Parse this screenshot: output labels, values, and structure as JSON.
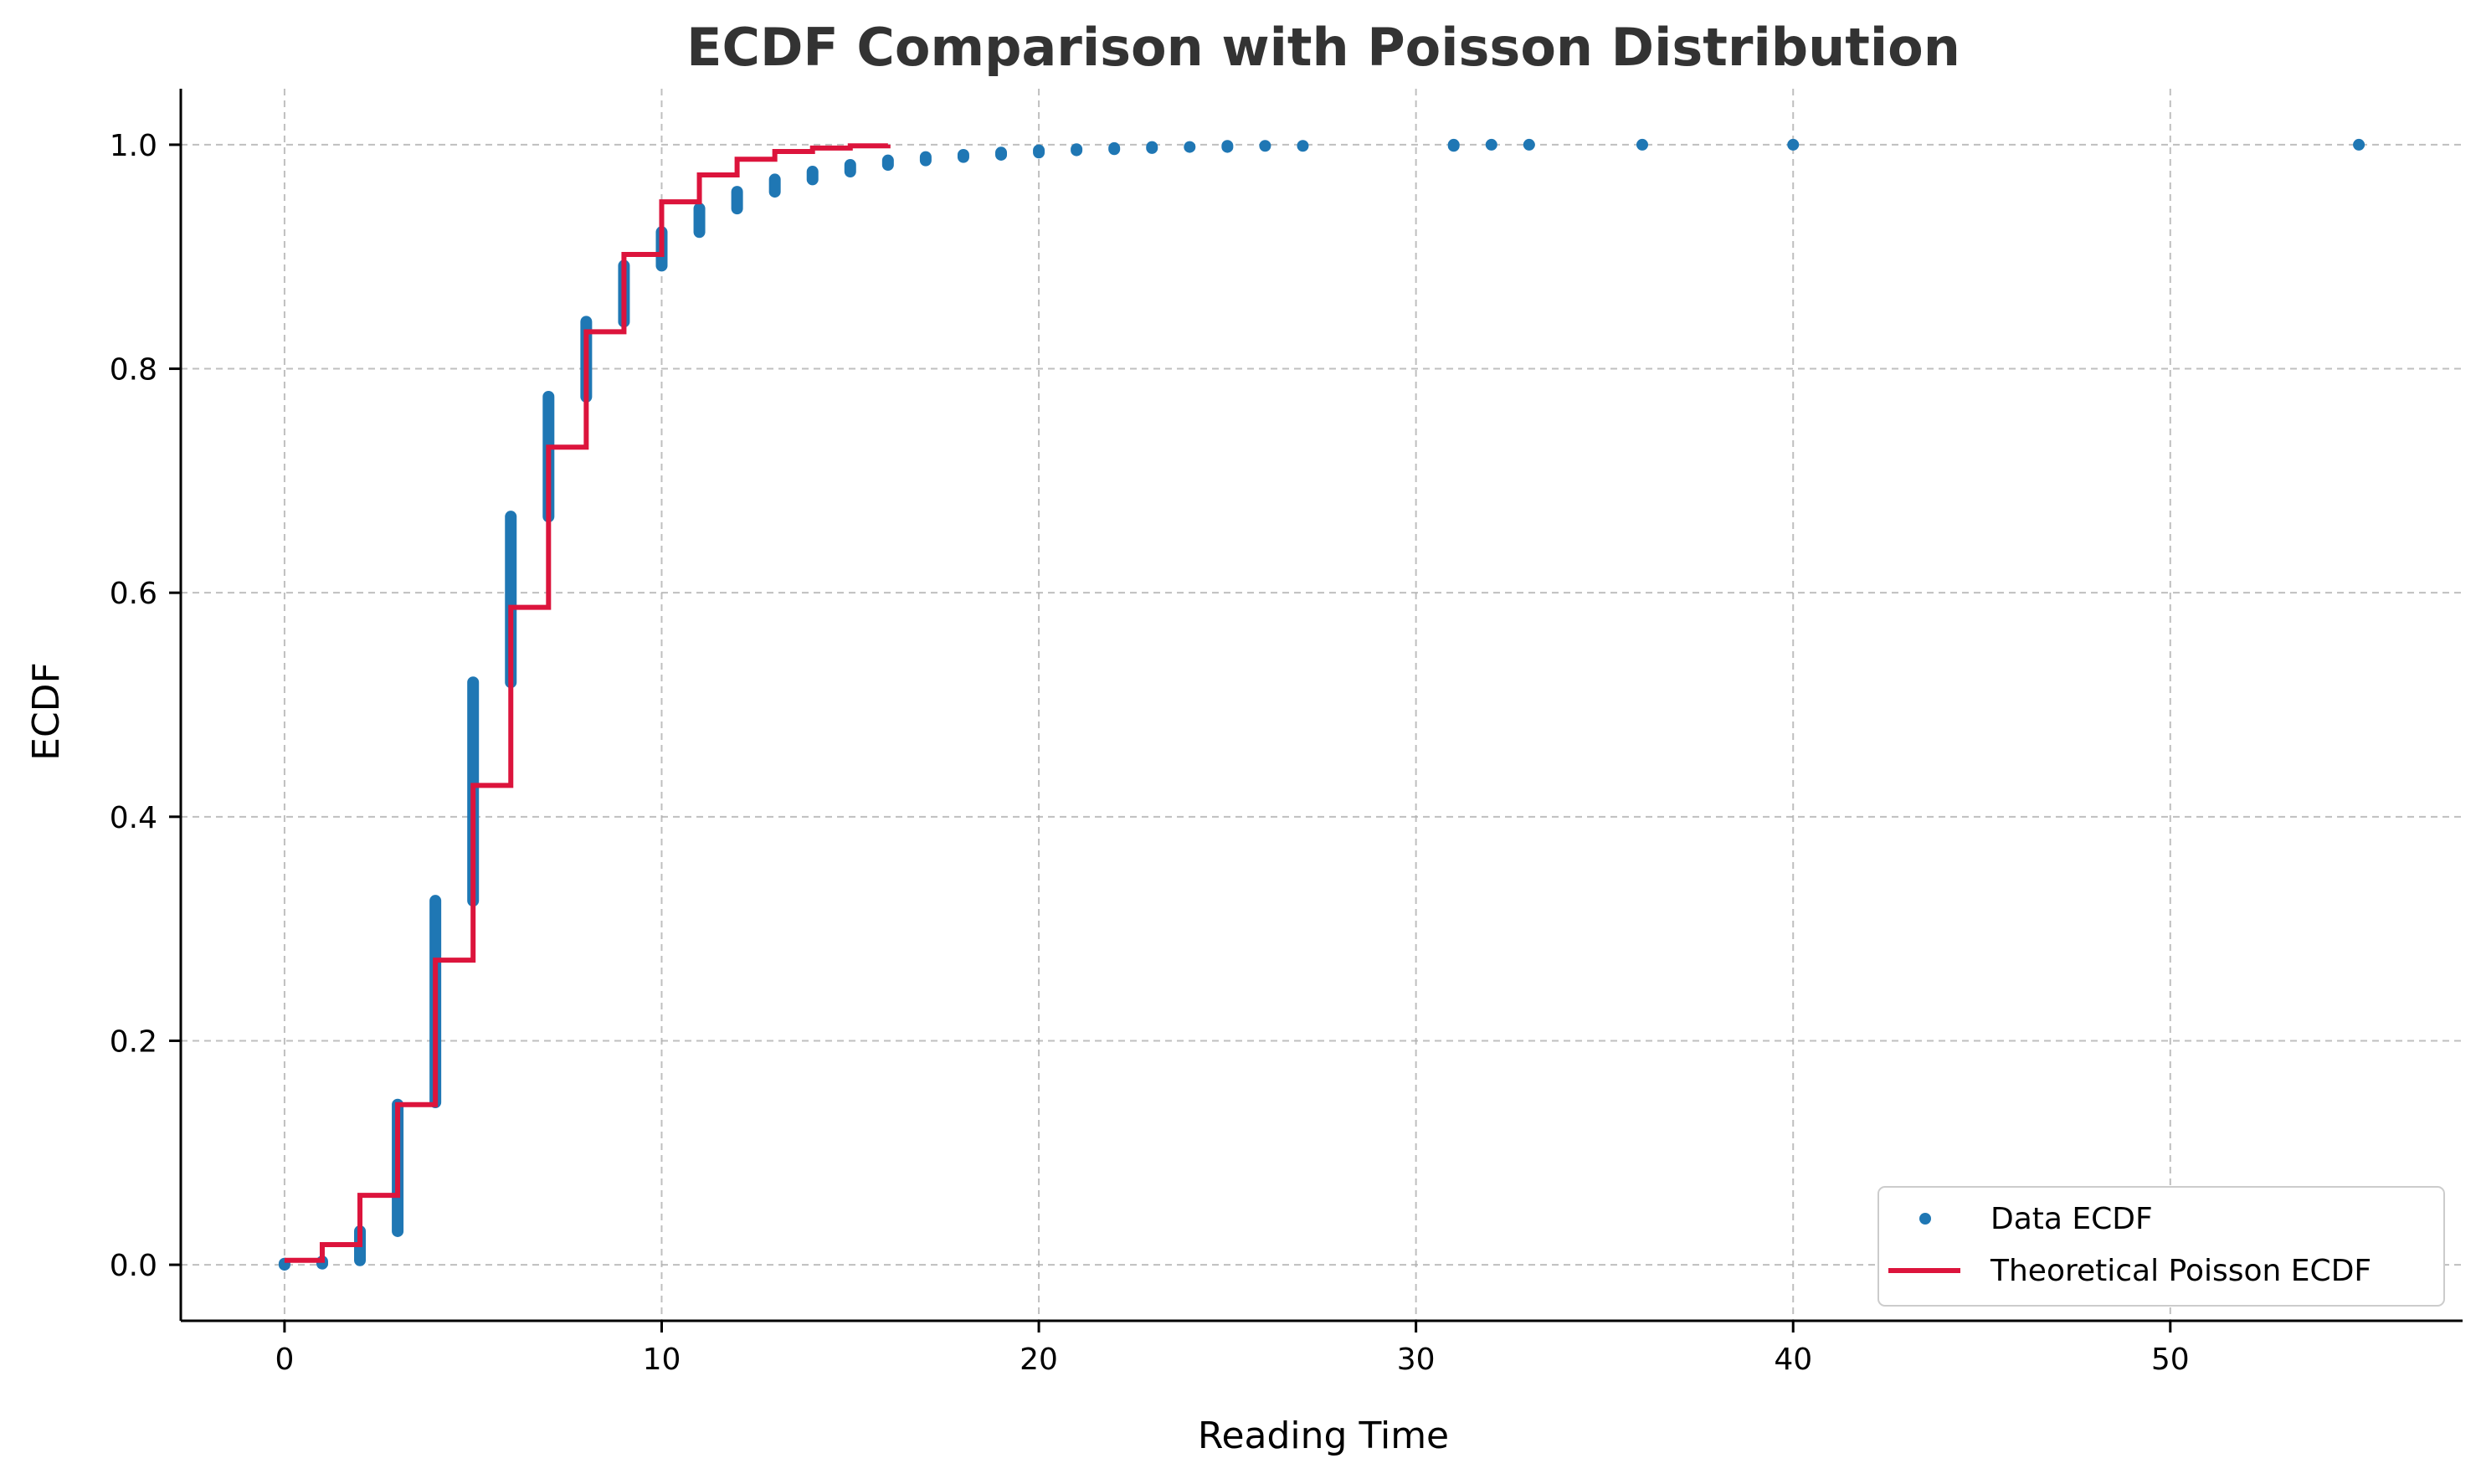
{
  "chart_data": {
    "type": "scatter",
    "title": "ECDF Comparison with Poisson Distribution",
    "xlabel": "Reading Time",
    "ylabel": "ECDF",
    "xlim": [
      -2.75,
      57.75
    ],
    "ylim": [
      -0.05,
      1.05
    ],
    "xticks": [
      0,
      10,
      20,
      30,
      40,
      50
    ],
    "xtick_labels": [
      "0",
      "10",
      "20",
      "30",
      "40",
      "50"
    ],
    "yticks": [
      0.0,
      0.2,
      0.4,
      0.6,
      0.8,
      1.0
    ],
    "ytick_labels": [
      "0.0",
      "0.2",
      "0.4",
      "0.6",
      "0.8",
      "1.0"
    ],
    "grid": true,
    "legend_position": "lower-right",
    "series": [
      {
        "name": "Data ECDF",
        "kind": "points",
        "color": "#1f77b4",
        "points": [
          {
            "x": 0,
            "y_min": 0.0,
            "y_max": 0.001
          },
          {
            "x": 1,
            "y_min": 0.001,
            "y_max": 0.003
          },
          {
            "x": 2,
            "y_min": 0.004,
            "y_max": 0.03
          },
          {
            "x": 3,
            "y_min": 0.03,
            "y_max": 0.143
          },
          {
            "x": 4,
            "y_min": 0.145,
            "y_max": 0.325
          },
          {
            "x": 5,
            "y_min": 0.325,
            "y_max": 0.52
          },
          {
            "x": 6,
            "y_min": 0.52,
            "y_max": 0.668
          },
          {
            "x": 7,
            "y_min": 0.668,
            "y_max": 0.775
          },
          {
            "x": 8,
            "y_min": 0.775,
            "y_max": 0.842
          },
          {
            "x": 9,
            "y_min": 0.842,
            "y_max": 0.892
          },
          {
            "x": 10,
            "y_min": 0.892,
            "y_max": 0.922
          },
          {
            "x": 11,
            "y_min": 0.922,
            "y_max": 0.943
          },
          {
            "x": 12,
            "y_min": 0.943,
            "y_max": 0.958
          },
          {
            "x": 13,
            "y_min": 0.958,
            "y_max": 0.969
          },
          {
            "x": 14,
            "y_min": 0.969,
            "y_max": 0.976
          },
          {
            "x": 15,
            "y_min": 0.976,
            "y_max": 0.982
          },
          {
            "x": 16,
            "y_min": 0.982,
            "y_max": 0.986
          },
          {
            "x": 17,
            "y_min": 0.986,
            "y_max": 0.989
          },
          {
            "x": 18,
            "y_min": 0.989,
            "y_max": 0.991
          },
          {
            "x": 19,
            "y_min": 0.991,
            "y_max": 0.993
          },
          {
            "x": 20,
            "y_min": 0.993,
            "y_max": 0.995
          },
          {
            "x": 21,
            "y_min": 0.995,
            "y_max": 0.996
          },
          {
            "x": 22,
            "y_min": 0.996,
            "y_max": 0.997
          },
          {
            "x": 23,
            "y_min": 0.997,
            "y_max": 0.998
          },
          {
            "x": 24,
            "y_min": 0.998,
            "y_max": 0.998
          },
          {
            "x": 25,
            "y_min": 0.998,
            "y_max": 0.999
          },
          {
            "x": 26,
            "y_min": 0.999,
            "y_max": 0.999
          },
          {
            "x": 27,
            "y_min": 0.999,
            "y_max": 0.999
          },
          {
            "x": 31,
            "y_min": 0.999,
            "y_max": 1.0
          },
          {
            "x": 32,
            "y_min": 1.0,
            "y_max": 1.0
          },
          {
            "x": 33,
            "y_min": 1.0,
            "y_max": 1.0
          },
          {
            "x": 36,
            "y_min": 1.0,
            "y_max": 1.0
          },
          {
            "x": 40,
            "y_min": 1.0,
            "y_max": 1.0
          },
          {
            "x": 55,
            "y_min": 1.0,
            "y_max": 1.0
          }
        ]
      },
      {
        "name": "Theoretical Poisson ECDF",
        "kind": "step",
        "color": "#dc143c",
        "x": [
          0,
          1,
          2,
          3,
          4,
          5,
          6,
          7,
          8,
          9,
          10,
          11,
          12,
          13,
          14,
          15,
          16
        ],
        "y": [
          0.004,
          0.018,
          0.062,
          0.143,
          0.272,
          0.428,
          0.587,
          0.73,
          0.833,
          0.902,
          0.949,
          0.973,
          0.987,
          0.994,
          0.997,
          0.999,
          1.0
        ]
      }
    ]
  }
}
